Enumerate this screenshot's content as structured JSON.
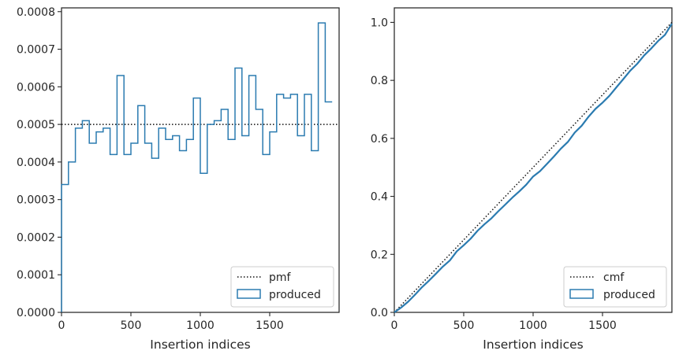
{
  "colors": {
    "produced": "#2b7bb0",
    "reference": "#111111",
    "frame": "#262626",
    "legend_border": "#cccccc"
  },
  "chart_data": [
    {
      "type": "histogram-step",
      "xlabel": "Insertion indices",
      "ylabel": "",
      "xlim": [
        0,
        2000
      ],
      "ylim": [
        0,
        0.00081
      ],
      "x_ticks": [
        0,
        500,
        1000,
        1500
      ],
      "x_tick_labels": [
        "0",
        "500",
        "1000",
        "1500"
      ],
      "y_ticks": [
        0,
        0.0001,
        0.0002,
        0.0003,
        0.0004,
        0.0005,
        0.0006,
        0.0007,
        0.0008
      ],
      "y_tick_labels": [
        "0.0000",
        "0.0001",
        "0.0002",
        "0.0003",
        "0.0004",
        "0.0005",
        "0.0006",
        "0.0007",
        "0.0008"
      ],
      "legend_position": "lower right",
      "grid": false,
      "series": [
        {
          "name": "pmf",
          "kind": "reference-line",
          "style": "dotted",
          "y": 0.0005
        },
        {
          "name": "produced",
          "kind": "step",
          "bin_width": 50,
          "bin_start": 0,
          "values": [
            0.00034,
            0.0004,
            0.00049,
            0.00051,
            0.00045,
            0.00048,
            0.00049,
            0.00042,
            0.00063,
            0.00042,
            0.00045,
            0.00055,
            0.00045,
            0.00041,
            0.00049,
            0.00046,
            0.00047,
            0.00043,
            0.00046,
            0.00057,
            0.00037,
            0.0005,
            0.00051,
            0.00054,
            0.00046,
            0.00065,
            0.00047,
            0.00063,
            0.00054,
            0.00042,
            0.00048,
            0.00058,
            0.00057,
            0.00058,
            0.00047,
            0.00058,
            0.00043,
            0.00077,
            0.00056
          ]
        }
      ]
    },
    {
      "type": "line",
      "xlabel": "Insertion indices",
      "ylabel": "",
      "xlim": [
        0,
        2000
      ],
      "ylim": [
        0,
        1.05
      ],
      "x_ticks": [
        0,
        500,
        1000,
        1500
      ],
      "x_tick_labels": [
        "0",
        "500",
        "1000",
        "1500"
      ],
      "y_ticks": [
        0,
        0.2,
        0.4,
        0.6,
        0.8,
        1.0
      ],
      "y_tick_labels": [
        "0.0",
        "0.2",
        "0.4",
        "0.6",
        "0.8",
        "1.0"
      ],
      "legend_position": "lower right",
      "grid": false,
      "series": [
        {
          "name": "cmf",
          "kind": "reference-line",
          "style": "dotted",
          "x": [
            0,
            2000
          ],
          "y": [
            0,
            1.0
          ]
        },
        {
          "name": "produced",
          "kind": "line",
          "x": [
            0,
            50,
            100,
            150,
            200,
            250,
            300,
            350,
            400,
            450,
            500,
            550,
            600,
            650,
            700,
            750,
            800,
            850,
            900,
            950,
            1000,
            1050,
            1100,
            1150,
            1200,
            1250,
            1300,
            1350,
            1400,
            1450,
            1500,
            1550,
            1600,
            1650,
            1700,
            1750,
            1800,
            1850,
            1900,
            1950,
            2000
          ],
          "y": [
            0,
            0.017,
            0.037,
            0.0615,
            0.087,
            0.1095,
            0.1335,
            0.158,
            0.179,
            0.2105,
            0.2315,
            0.254,
            0.2815,
            0.304,
            0.3245,
            0.349,
            0.372,
            0.3955,
            0.417,
            0.44,
            0.4685,
            0.487,
            0.512,
            0.5375,
            0.5645,
            0.5875,
            0.62,
            0.6435,
            0.675,
            0.702,
            0.723,
            0.747,
            0.776,
            0.8045,
            0.8335,
            0.857,
            0.886,
            0.9095,
            0.9355,
            0.957,
            0.9955
          ]
        }
      ]
    }
  ]
}
